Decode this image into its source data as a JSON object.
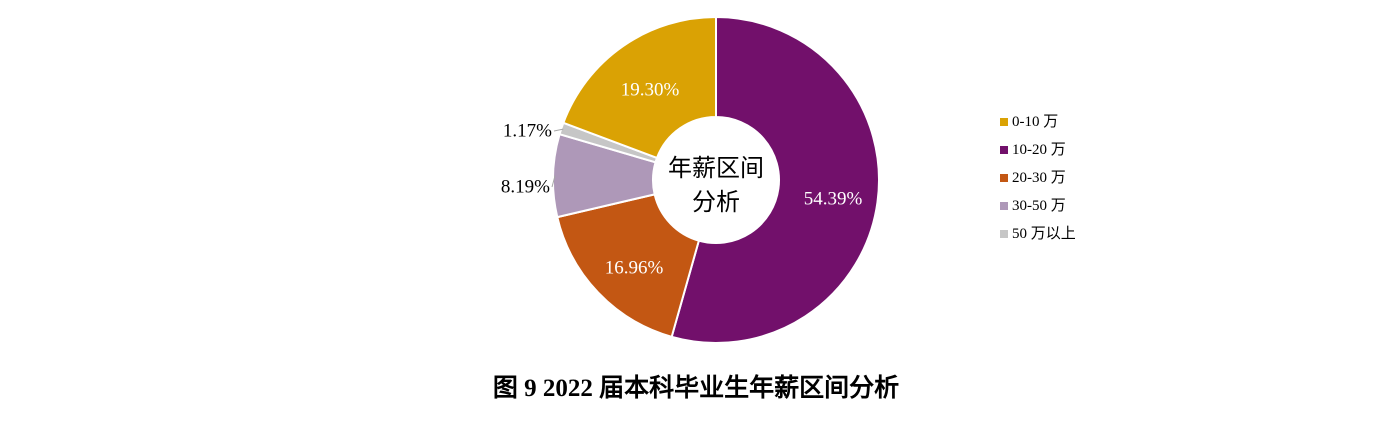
{
  "chart_data": {
    "type": "pie",
    "center_label": [
      "年薪区间",
      "分析"
    ],
    "categories": [
      "0-10 万",
      "10-20 万",
      "20-30 万",
      "30-50 万",
      "50 万以上"
    ],
    "values": [
      19.3,
      54.39,
      16.96,
      8.19,
      1.17
    ],
    "value_labels": [
      "19.30%",
      "54.39%",
      "16.96%",
      "8.19%",
      "1.17%"
    ],
    "colors": [
      "#DAA204",
      "#72106B",
      "#C35713",
      "#AE98B8",
      "#C6C6C6"
    ],
    "legend_position": "right",
    "hole": true
  },
  "caption": "图 9 2022 届本科毕业生年薪区间分析"
}
